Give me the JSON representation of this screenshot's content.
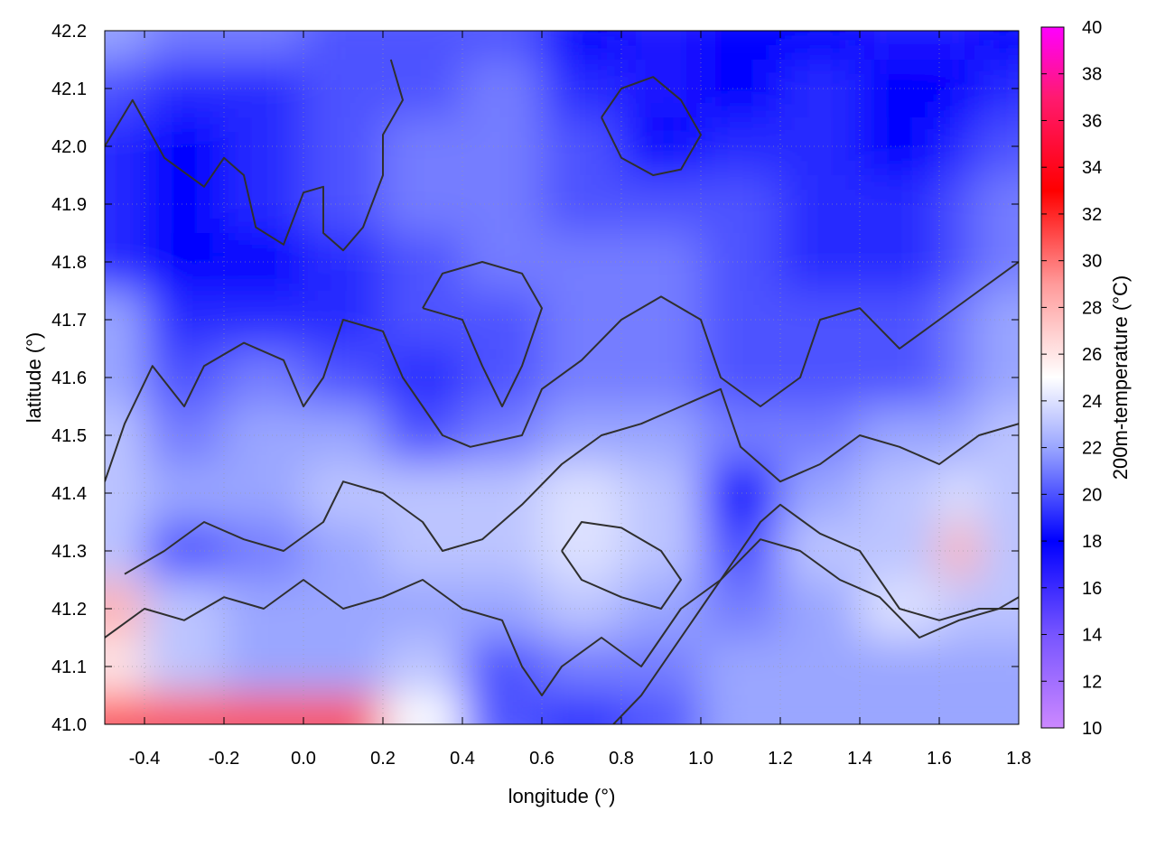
{
  "chart_data": {
    "type": "heatmap",
    "title": "",
    "xlabel": "longitude (°)",
    "ylabel": "latitude (°)",
    "xlim": [
      -0.5,
      1.8
    ],
    "ylim": [
      41.0,
      42.2
    ],
    "xticks": [
      -0.4,
      -0.2,
      0.0,
      0.2,
      0.4,
      0.6,
      0.8,
      1.0,
      1.2,
      1.4,
      1.6,
      1.8
    ],
    "xtick_labels": [
      "-0.4",
      "-0.2",
      "0.0",
      "0.2",
      "0.4",
      "0.6",
      "0.8",
      "1.0",
      "1.2",
      "1.4",
      "1.6",
      "1.8"
    ],
    "yticks": [
      41.0,
      41.1,
      41.2,
      41.3,
      41.4,
      41.5,
      41.6,
      41.7,
      41.8,
      41.9,
      42.0,
      42.1,
      42.2
    ],
    "ytick_labels": [
      "41.0",
      "41.1",
      "41.2",
      "41.3",
      "41.4",
      "41.5",
      "41.6",
      "41.7",
      "41.8",
      "41.9",
      "42.0",
      "42.1",
      "42.2"
    ],
    "grid": true,
    "colorbar": {
      "label": "200m-temperature (°C)",
      "range": [
        10,
        40
      ],
      "ticks": [
        10,
        12,
        14,
        16,
        18,
        20,
        22,
        24,
        26,
        28,
        30,
        32,
        34,
        36,
        38,
        40
      ],
      "tick_labels": [
        "10",
        "12",
        "14",
        "16",
        "18",
        "20",
        "22",
        "24",
        "26",
        "28",
        "30",
        "32",
        "34",
        "36",
        "38",
        "40"
      ],
      "stops": [
        {
          "value": 10,
          "color": "#cc88ff"
        },
        {
          "value": 14,
          "color": "#7755ff"
        },
        {
          "value": 18,
          "color": "#0000ff"
        },
        {
          "value": 22,
          "color": "#9aa6ff"
        },
        {
          "value": 25,
          "color": "#ffffff"
        },
        {
          "value": 29,
          "color": "#ff9a9a"
        },
        {
          "value": 33,
          "color": "#ff0000"
        },
        {
          "value": 37,
          "color": "#ff1a70"
        },
        {
          "value": 40,
          "color": "#ff00ff"
        }
      ]
    },
    "field_grid": {
      "lon": [
        -0.5,
        -0.3,
        -0.1,
        0.1,
        0.3,
        0.5,
        0.7,
        0.9,
        1.1,
        1.3,
        1.5,
        1.7,
        1.8
      ],
      "lat": [
        42.2,
        42.1,
        42.0,
        41.9,
        41.8,
        41.7,
        41.6,
        41.5,
        41.4,
        41.3,
        41.2,
        41.1,
        41.0
      ],
      "temperature": [
        [
          22,
          21,
          21,
          20,
          20,
          20,
          18,
          17,
          18,
          18,
          17,
          17,
          18
        ],
        [
          20,
          19,
          19,
          20,
          20,
          21,
          19,
          17,
          18,
          19,
          18,
          18,
          19
        ],
        [
          19,
          18,
          19,
          20,
          21,
          21,
          20,
          18,
          19,
          19,
          18,
          19,
          20
        ],
        [
          19,
          18,
          19,
          20,
          21,
          21,
          20,
          20,
          20,
          19,
          19,
          20,
          21
        ],
        [
          19,
          18,
          18,
          19,
          20,
          21,
          21,
          21,
          20,
          19,
          19,
          20,
          21
        ],
        [
          22,
          19,
          19,
          19,
          20,
          20,
          21,
          21,
          20,
          20,
          20,
          21,
          22
        ],
        [
          22,
          20,
          21,
          20,
          19,
          20,
          21,
          21,
          20,
          20,
          20,
          21,
          22
        ],
        [
          23,
          21,
          22,
          22,
          20,
          21,
          22,
          22,
          21,
          21,
          22,
          22,
          23
        ],
        [
          23,
          22,
          22,
          23,
          23,
          23,
          24,
          23,
          18,
          22,
          23,
          24,
          23
        ],
        [
          23,
          20,
          21,
          22,
          23,
          23,
          24,
          23,
          20,
          23,
          23,
          28,
          23
        ],
        [
          28,
          23,
          22,
          22,
          22,
          22,
          23,
          22,
          21,
          22,
          24,
          23,
          23
        ],
        [
          26,
          23,
          22,
          22,
          23,
          20,
          21,
          21,
          22,
          22,
          22,
          22,
          22
        ],
        [
          31,
          31,
          31,
          31,
          25,
          20,
          19,
          20,
          22,
          22,
          22,
          22,
          22
        ]
      ]
    },
    "contours": [
      [
        [
          -0.5,
          42.0
        ],
        [
          -0.43,
          42.08
        ],
        [
          -0.35,
          41.98
        ],
        [
          -0.25,
          41.93
        ],
        [
          -0.2,
          41.98
        ],
        [
          -0.15,
          41.95
        ],
        [
          -0.12,
          41.86
        ],
        [
          -0.05,
          41.83
        ],
        [
          0.0,
          41.92
        ],
        [
          0.05,
          41.93
        ],
        [
          0.05,
          41.85
        ],
        [
          0.1,
          41.82
        ],
        [
          0.15,
          41.86
        ],
        [
          0.2,
          41.95
        ],
        [
          0.2,
          42.02
        ],
        [
          0.25,
          42.08
        ],
        [
          0.22,
          42.15
        ]
      ],
      [
        [
          -0.5,
          41.42
        ],
        [
          -0.45,
          41.52
        ],
        [
          -0.38,
          41.62
        ],
        [
          -0.3,
          41.55
        ],
        [
          -0.25,
          41.62
        ],
        [
          -0.15,
          41.66
        ],
        [
          -0.05,
          41.63
        ],
        [
          0.0,
          41.55
        ],
        [
          0.05,
          41.6
        ],
        [
          0.1,
          41.7
        ],
        [
          0.2,
          41.68
        ],
        [
          0.25,
          41.6
        ],
        [
          0.3,
          41.55
        ],
        [
          0.35,
          41.5
        ],
        [
          0.42,
          41.48
        ],
        [
          0.55,
          41.5
        ],
        [
          0.6,
          41.58
        ],
        [
          0.7,
          41.63
        ],
        [
          0.8,
          41.7
        ],
        [
          0.9,
          41.74
        ],
        [
          1.0,
          41.7
        ],
        [
          1.05,
          41.6
        ],
        [
          1.15,
          41.55
        ],
        [
          1.25,
          41.6
        ],
        [
          1.3,
          41.7
        ],
        [
          1.4,
          41.72
        ],
        [
          1.5,
          41.65
        ],
        [
          1.6,
          41.7
        ],
        [
          1.7,
          41.75
        ],
        [
          1.8,
          41.8
        ]
      ],
      [
        [
          -0.45,
          41.26
        ],
        [
          -0.35,
          41.3
        ],
        [
          -0.25,
          41.35
        ],
        [
          -0.15,
          41.32
        ],
        [
          -0.05,
          41.3
        ],
        [
          0.05,
          41.35
        ],
        [
          0.1,
          41.42
        ],
        [
          0.2,
          41.4
        ],
        [
          0.3,
          41.35
        ],
        [
          0.35,
          41.3
        ],
        [
          0.45,
          41.32
        ],
        [
          0.55,
          41.38
        ],
        [
          0.65,
          41.45
        ],
        [
          0.75,
          41.5
        ],
        [
          0.85,
          41.52
        ],
        [
          0.95,
          41.55
        ],
        [
          1.05,
          41.58
        ],
        [
          1.1,
          41.48
        ],
        [
          1.2,
          41.42
        ],
        [
          1.3,
          41.45
        ],
        [
          1.4,
          41.5
        ],
        [
          1.5,
          41.48
        ],
        [
          1.6,
          41.45
        ],
        [
          1.7,
          41.5
        ],
        [
          1.8,
          41.52
        ]
      ],
      [
        [
          -0.5,
          41.15
        ],
        [
          -0.4,
          41.2
        ],
        [
          -0.3,
          41.18
        ],
        [
          -0.2,
          41.22
        ],
        [
          -0.1,
          41.2
        ],
        [
          0.0,
          41.25
        ],
        [
          0.1,
          41.2
        ],
        [
          0.2,
          41.22
        ],
        [
          0.3,
          41.25
        ],
        [
          0.4,
          41.2
        ],
        [
          0.5,
          41.18
        ],
        [
          0.55,
          41.1
        ],
        [
          0.6,
          41.05
        ],
        [
          0.65,
          41.1
        ],
        [
          0.75,
          41.15
        ],
        [
          0.85,
          41.1
        ],
        [
          0.95,
          41.2
        ],
        [
          1.05,
          41.25
        ],
        [
          1.15,
          41.32
        ],
        [
          1.25,
          41.3
        ],
        [
          1.35,
          41.25
        ],
        [
          1.45,
          41.22
        ],
        [
          1.55,
          41.15
        ],
        [
          1.65,
          41.18
        ],
        [
          1.75,
          41.2
        ],
        [
          1.8,
          41.22
        ]
      ],
      [
        [
          0.78,
          41.0
        ],
        [
          0.85,
          41.05
        ],
        [
          0.92,
          41.12
        ],
        [
          1.0,
          41.2
        ],
        [
          1.08,
          41.28
        ],
        [
          1.15,
          41.35
        ],
        [
          1.2,
          41.38
        ],
        [
          1.3,
          41.33
        ],
        [
          1.4,
          41.3
        ],
        [
          1.45,
          41.25
        ],
        [
          1.5,
          41.2
        ],
        [
          1.6,
          41.18
        ],
        [
          1.7,
          41.2
        ],
        [
          1.8,
          41.2
        ]
      ],
      [
        [
          0.65,
          41.3
        ],
        [
          0.7,
          41.35
        ],
        [
          0.8,
          41.34
        ],
        [
          0.9,
          41.3
        ],
        [
          0.95,
          41.25
        ],
        [
          0.9,
          41.2
        ],
        [
          0.8,
          41.22
        ],
        [
          0.7,
          41.25
        ],
        [
          0.65,
          41.3
        ]
      ],
      [
        [
          0.3,
          41.72
        ],
        [
          0.4,
          41.7
        ],
        [
          0.45,
          41.62
        ],
        [
          0.5,
          41.55
        ],
        [
          0.55,
          41.62
        ],
        [
          0.6,
          41.72
        ],
        [
          0.55,
          41.78
        ],
        [
          0.45,
          41.8
        ],
        [
          0.35,
          41.78
        ],
        [
          0.3,
          41.72
        ]
      ],
      [
        [
          0.75,
          42.05
        ],
        [
          0.8,
          42.1
        ],
        [
          0.88,
          42.12
        ],
        [
          0.95,
          42.08
        ],
        [
          1.0,
          42.02
        ],
        [
          0.95,
          41.96
        ],
        [
          0.88,
          41.95
        ],
        [
          0.8,
          41.98
        ],
        [
          0.75,
          42.05
        ]
      ]
    ]
  }
}
